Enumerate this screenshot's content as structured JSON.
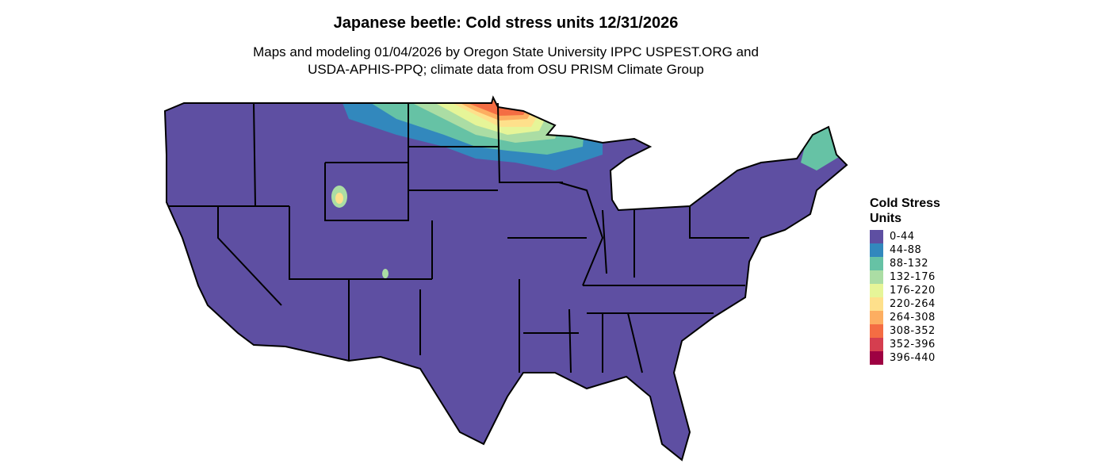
{
  "title": "Japanese beetle: Cold stress units 12/31/2026",
  "subtitle_line1": "Maps and modeling 01/04/2026 by Oregon State University IPPC USPEST.ORG and",
  "subtitle_line2": "USDA-APHIS-PPQ; climate data from OSU PRISM Climate Group",
  "legend": {
    "title_line1": "Cold Stress",
    "title_line2": "Units",
    "items": [
      {
        "label": "0-44",
        "color": "#5E4FA2"
      },
      {
        "label": "44-88",
        "color": "#3288BD"
      },
      {
        "label": "88-132",
        "color": "#66C2A5"
      },
      {
        "label": "132-176",
        "color": "#ABDDA4"
      },
      {
        "label": "176-220",
        "color": "#E6F598"
      },
      {
        "label": "220-264",
        "color": "#FEE08B"
      },
      {
        "label": "264-308",
        "color": "#FDAE61"
      },
      {
        "label": "308-352",
        "color": "#F46D43"
      },
      {
        "label": "352-396",
        "color": "#D53E4F"
      },
      {
        "label": "396-440",
        "color": "#9E0142"
      }
    ]
  }
}
